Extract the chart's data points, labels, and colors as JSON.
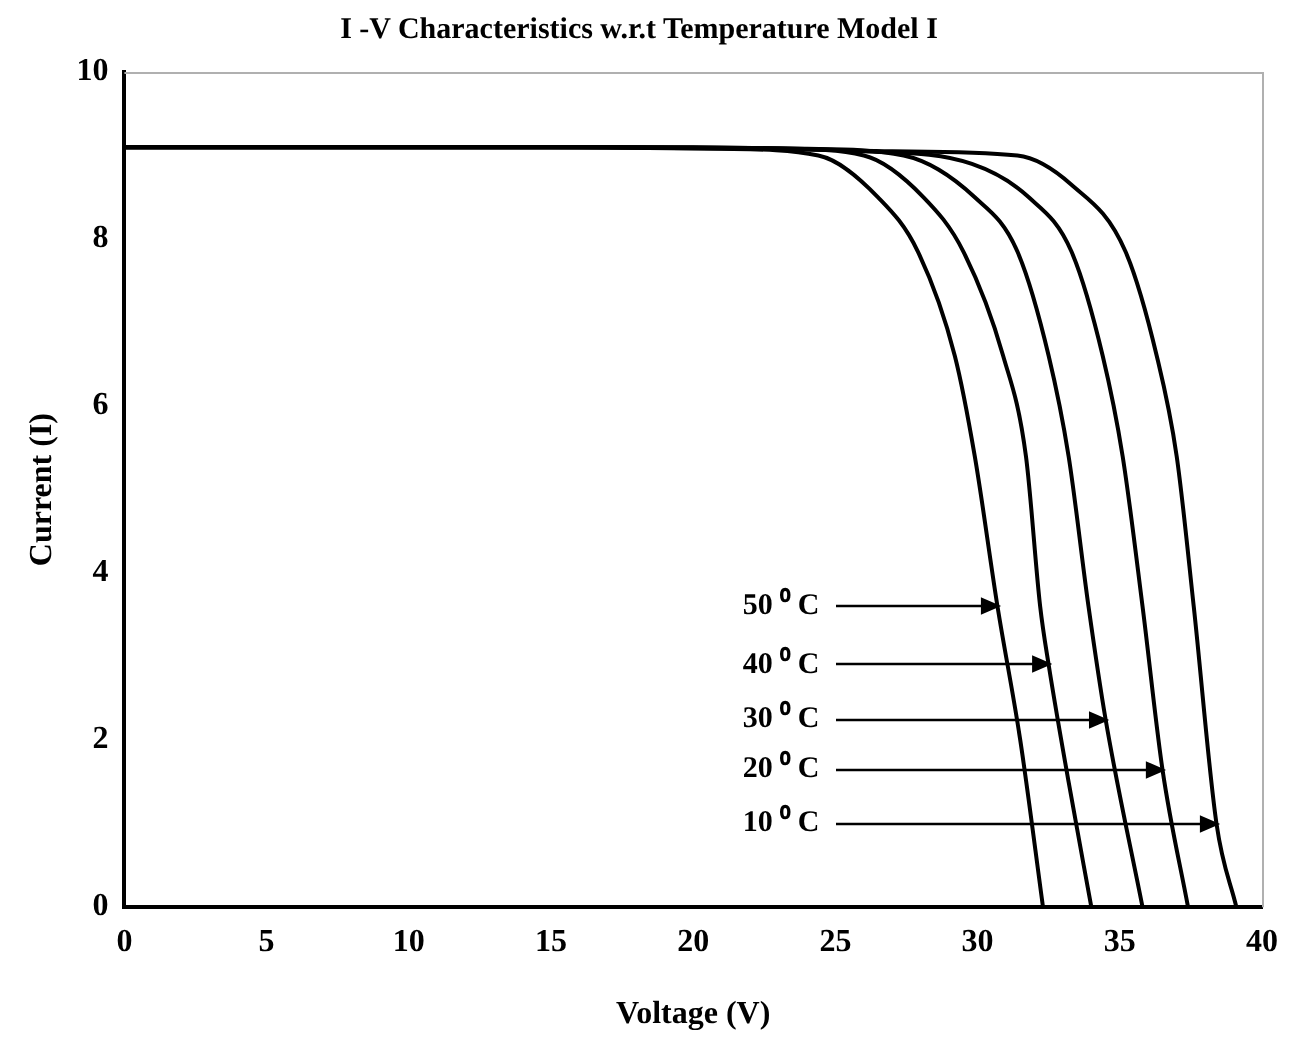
{
  "chart_data": {
    "type": "line",
    "title": "I -V Characteristics w.r.t Temperature Model I",
    "xlabel": "Voltage (V)",
    "ylabel": "Current (I)",
    "xlim": [
      0,
      40
    ],
    "xticks": [
      0,
      5,
      10,
      15,
      20,
      25,
      30,
      35,
      40
    ],
    "ylim": [
      0,
      10
    ],
    "yticks": [
      0,
      2,
      4,
      6,
      8,
      10
    ],
    "grid": false,
    "legend": false,
    "marker": "none",
    "line_style": "solid",
    "series": [
      {
        "color": "#000000",
        "x": [
          0,
          15,
          21,
          24.4,
          26.5,
          27.9,
          29.2,
          29.9,
          30.7,
          31.5,
          32.3
        ],
        "values": [
          9.1,
          9.1,
          9.08,
          9.0,
          8.5,
          7.85,
          6.6,
          5.4,
          3.6,
          2.0,
          0
        ]
      },
      {
        "color": "#000000",
        "x": [
          0,
          16,
          23,
          26,
          28.1,
          29.5,
          30.9,
          31.7,
          32.2,
          32.5,
          33.2,
          34.0
        ],
        "values": [
          9.1,
          9.1,
          9.08,
          9.0,
          8.5,
          7.85,
          6.6,
          5.4,
          3.6,
          2.9,
          1.5,
          0
        ]
      },
      {
        "color": "#000000",
        "x": [
          0,
          17,
          24,
          27.4,
          29.9,
          31.4,
          32.5,
          33.2,
          33.9,
          34.5,
          35.8
        ],
        "values": [
          9.1,
          9.1,
          9.08,
          9.0,
          8.5,
          7.85,
          6.6,
          5.4,
          3.6,
          2.25,
          0
        ]
      },
      {
        "color": "#000000",
        "x": [
          0,
          18,
          26,
          29.8,
          31.8,
          33.3,
          34.4,
          35.1,
          35.8,
          36.5,
          37.4
        ],
        "values": [
          9.1,
          9.1,
          9.05,
          8.9,
          8.5,
          7.85,
          6.6,
          5.4,
          3.6,
          1.65,
          0
        ]
      },
      {
        "color": "#000000",
        "x": [
          0,
          20,
          27,
          31.4,
          33.3,
          35.2,
          36.3,
          37.0,
          37.6,
          38.4,
          39.1
        ],
        "values": [
          9.1,
          9.1,
          9.05,
          9.0,
          8.65,
          7.85,
          6.6,
          5.4,
          3.6,
          1.0,
          0
        ]
      }
    ],
    "annotations": [
      {
        "text": "50 ⁰ C",
        "x": 30.7,
        "y": 3.6
      },
      {
        "text": "40 ⁰ C",
        "x": 32.5,
        "y": 2.9
      },
      {
        "text": "30 ⁰ C",
        "x": 34.5,
        "y": 2.25
      },
      {
        "text": "20 ⁰ C",
        "x": 36.5,
        "y": 1.65
      },
      {
        "text": "10 ⁰ C",
        "x": 38.4,
        "y": 1.0
      }
    ]
  }
}
